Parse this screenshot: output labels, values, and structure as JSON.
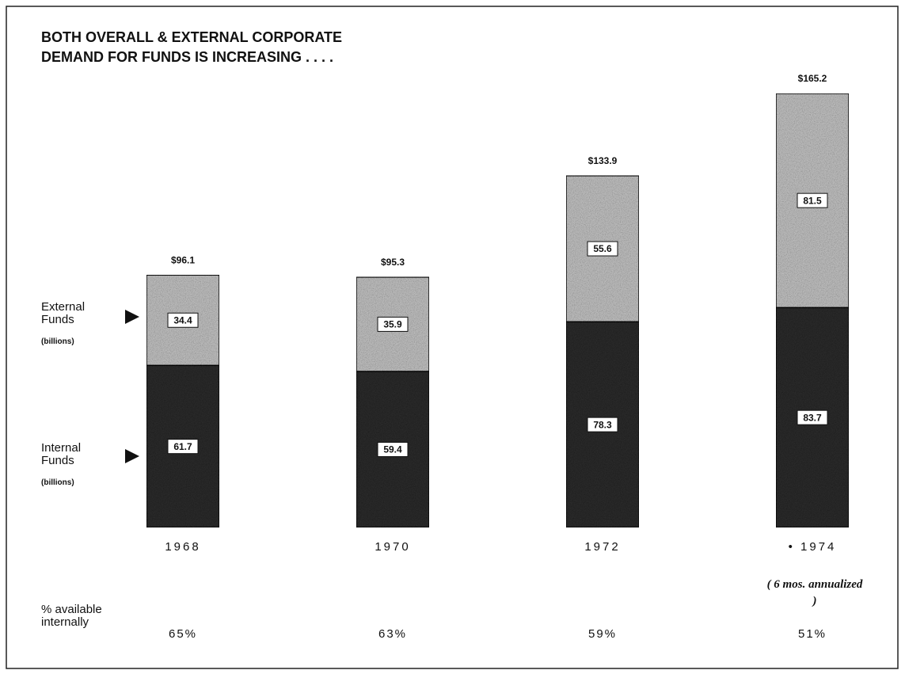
{
  "chart_data": {
    "type": "bar",
    "stacked": true,
    "title": [
      "BOTH OVERALL & EXTERNAL CORPORATE",
      "DEMAND FOR FUNDS IS INCREASING . . . ."
    ],
    "categories": [
      "1968",
      "1970",
      "1972",
      "• 1974"
    ],
    "series": [
      {
        "name": "Internal Funds",
        "color": "#2b2b2b",
        "values": [
          61.7,
          59.4,
          78.3,
          83.7
        ]
      },
      {
        "name": "External Funds",
        "color": "#b8b8b8",
        "values": [
          34.4,
          35.9,
          55.6,
          81.5
        ]
      }
    ],
    "series_unit": "(billions)",
    "totals": [
      96.1,
      95.3,
      133.9,
      165.2
    ],
    "total_labels": [
      "$96.1",
      "$95.3",
      "$133.9",
      "$165.2"
    ],
    "note": "( 6 mos. annualized )",
    "pct_title": "% available internally",
    "pct_available": [
      65,
      63,
      59,
      51
    ],
    "pct_labels": [
      "65%",
      "63%",
      "59%",
      "51%"
    ]
  }
}
